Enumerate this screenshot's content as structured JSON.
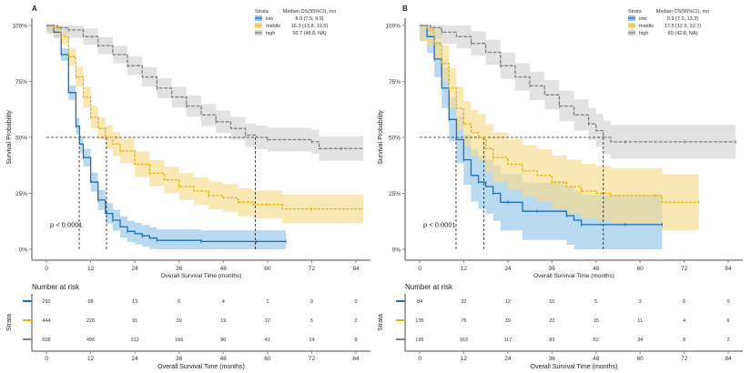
{
  "chart_data": [
    {
      "type": "line",
      "panel": "A",
      "xlabel": "Overall Survival Time (months)",
      "ylabel": "Survival Probability",
      "xlim": [
        0,
        86
      ],
      "ylim": [
        0,
        1
      ],
      "xticks": [
        "0",
        "12",
        "24",
        "36",
        "48",
        "60",
        "72",
        "84"
      ],
      "yticks": [
        "0%",
        "25%",
        "50%",
        "75%",
        "100%"
      ],
      "pvalue": "p < 0.0001",
      "legend": {
        "title": "Strata",
        "header": "Median OS(95%CI), mo",
        "placement": "top-right",
        "entries": [
          {
            "name": "low",
            "median": "8.9 (7.5, 9.9)"
          },
          {
            "name": "middle",
            "median": "16.3 (13.8, 19.5)"
          },
          {
            "name": "high",
            "median": "56.7 (48.8, NA)"
          }
        ]
      },
      "medians": [
        8.9,
        16.3,
        56.7
      ],
      "series": [
        {
          "name": "low",
          "color": "#1f6fb4",
          "band": "#93c4ea",
          "x": [
            0,
            2,
            4,
            6,
            8,
            9,
            10,
            12,
            14,
            16,
            18,
            20,
            22,
            24,
            26,
            28,
            30,
            40,
            42,
            50,
            57,
            60,
            65
          ],
          "y": [
            1.0,
            0.97,
            0.87,
            0.7,
            0.55,
            0.47,
            0.41,
            0.3,
            0.22,
            0.16,
            0.13,
            0.1,
            0.08,
            0.07,
            0.06,
            0.05,
            0.04,
            0.04,
            0.035,
            0.035,
            0.035,
            0.035,
            0.035
          ],
          "ci": 0.025
        },
        {
          "name": "middle",
          "color": "#e3b40b",
          "band": "#f6dc8c",
          "x": [
            0,
            2,
            4,
            6,
            8,
            10,
            12,
            14,
            16,
            18,
            20,
            24,
            28,
            32,
            36,
            40,
            44,
            48,
            52,
            56,
            60,
            64,
            72,
            86
          ],
          "y": [
            1.0,
            0.99,
            0.95,
            0.86,
            0.77,
            0.68,
            0.59,
            0.54,
            0.5,
            0.47,
            0.44,
            0.38,
            0.34,
            0.31,
            0.28,
            0.26,
            0.24,
            0.23,
            0.21,
            0.2,
            0.2,
            0.18,
            0.18,
            0.18
          ],
          "ci": 0.035
        },
        {
          "name": "high",
          "color": "#808080",
          "band": "#d3d3d3",
          "x": [
            0,
            3,
            6,
            10,
            14,
            18,
            22,
            26,
            30,
            34,
            38,
            42,
            46,
            50,
            54,
            57,
            60,
            66,
            72,
            74,
            80,
            86
          ],
          "y": [
            1.0,
            0.99,
            0.98,
            0.95,
            0.91,
            0.87,
            0.82,
            0.77,
            0.72,
            0.68,
            0.64,
            0.6,
            0.57,
            0.54,
            0.51,
            0.5,
            0.49,
            0.49,
            0.48,
            0.45,
            0.45,
            0.45
          ],
          "ci": 0.035
        }
      ],
      "risk_table": {
        "title": "Number at risk",
        "ylabel": "Strata",
        "xlabel": "Overall Survival Time (months)",
        "times": [
          0,
          12,
          24,
          36,
          48,
          60,
          72,
          84
        ],
        "rows": [
          {
            "name": "low",
            "values": [
              292,
              68,
              13,
              6,
              4,
              1,
              0,
              0
            ]
          },
          {
            "name": "middle",
            "values": [
              444,
              220,
              91,
              39,
              19,
              12,
              5,
              2
            ]
          },
          {
            "name": "high",
            "values": [
              608,
              496,
              312,
              166,
              90,
              41,
              14,
              8
            ]
          }
        ]
      }
    },
    {
      "type": "line",
      "panel": "B",
      "xlabel": "Overall Survival Time (months)",
      "ylabel": "Survival Probability",
      "xlim": [
        0,
        86
      ],
      "ylim": [
        0,
        1
      ],
      "xticks": [
        "0",
        "12",
        "24",
        "36",
        "48",
        "60",
        "72",
        "84"
      ],
      "yticks": [
        "0%",
        "25%",
        "50%",
        "75%",
        "100%"
      ],
      "pvalue": "p < 0.0001",
      "legend": {
        "title": "Strata",
        "header": "Median OS(95%CI), mo",
        "placement": "top-right",
        "entries": [
          {
            "name": "low",
            "median": "9.9 (7.3, 13.3)"
          },
          {
            "name": "middle",
            "median": "17.5 (12.6, 22.7)"
          },
          {
            "name": "high",
            "median": "50 (42.8, NA)"
          }
        ]
      },
      "medians": [
        9.9,
        17.5,
        50
      ],
      "series": [
        {
          "name": "low",
          "color": "#1f6fb4",
          "band": "#93c4ea",
          "x": [
            0,
            2,
            4,
            6,
            8,
            10,
            12,
            14,
            16,
            18,
            20,
            22,
            24,
            28,
            32,
            36,
            40,
            42,
            44,
            48,
            56,
            64,
            66
          ],
          "y": [
            1.0,
            0.95,
            0.85,
            0.72,
            0.58,
            0.49,
            0.4,
            0.33,
            0.3,
            0.28,
            0.25,
            0.21,
            0.21,
            0.17,
            0.17,
            0.17,
            0.15,
            0.13,
            0.11,
            0.11,
            0.11,
            0.11,
            0.11
          ],
          "ci": 0.07
        },
        {
          "name": "middle",
          "color": "#e3b40b",
          "band": "#f6dc8c",
          "x": [
            0,
            2,
            4,
            6,
            8,
            10,
            12,
            14,
            16,
            18,
            20,
            24,
            28,
            32,
            36,
            40,
            44,
            48,
            52,
            56,
            64,
            66,
            76
          ],
          "y": [
            1.0,
            0.98,
            0.92,
            0.83,
            0.72,
            0.63,
            0.56,
            0.52,
            0.5,
            0.45,
            0.41,
            0.38,
            0.35,
            0.33,
            0.3,
            0.28,
            0.26,
            0.25,
            0.24,
            0.24,
            0.24,
            0.21,
            0.21
          ],
          "ci": 0.07
        },
        {
          "name": "high",
          "color": "#808080",
          "band": "#d3d3d3",
          "x": [
            0,
            3,
            6,
            10,
            14,
            18,
            22,
            26,
            30,
            34,
            38,
            42,
            46,
            48,
            50,
            52,
            56,
            64,
            72,
            80,
            86
          ],
          "y": [
            1.0,
            0.99,
            0.97,
            0.95,
            0.92,
            0.88,
            0.82,
            0.77,
            0.73,
            0.69,
            0.64,
            0.6,
            0.56,
            0.53,
            0.5,
            0.48,
            0.48,
            0.48,
            0.48,
            0.48,
            0.48
          ],
          "ci": 0.05
        }
      ],
      "risk_table": {
        "title": "Number at risk",
        "ylabel": "Strata",
        "xlabel": "Overall Survival Time (months)",
        "times": [
          0,
          12,
          24,
          36,
          48,
          60,
          72,
          84
        ],
        "rows": [
          {
            "name": "low",
            "values": [
              84,
              32,
              12,
              10,
              5,
              3,
              0,
              0
            ]
          },
          {
            "name": "middle",
            "values": [
              135,
              76,
              39,
              22,
              15,
              11,
              4,
              0
            ]
          },
          {
            "name": "high",
            "values": [
              195,
              163,
              117,
              83,
              52,
              34,
              8,
              2
            ]
          }
        ]
      }
    }
  ]
}
